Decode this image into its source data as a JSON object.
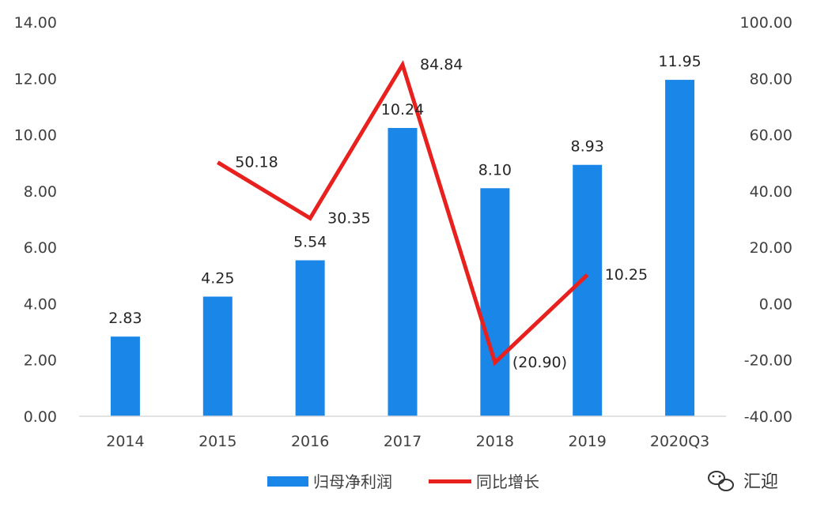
{
  "chart_data": {
    "type": "bar+line",
    "categories": [
      "2014",
      "2015",
      "2016",
      "2017",
      "2018",
      "2019",
      "2020Q3"
    ],
    "series": [
      {
        "name": "归母净利润",
        "type": "bar",
        "axis": "left",
        "color": "#1a86e8",
        "values": [
          2.83,
          4.25,
          5.54,
          10.24,
          8.1,
          8.93,
          11.95
        ],
        "labels": [
          "2.83",
          "4.25",
          "5.54",
          "10.24",
          "8.10",
          "8.93",
          "11.95"
        ]
      },
      {
        "name": "同比增长",
        "type": "line",
        "axis": "right",
        "color": "#e8201e",
        "values": [
          null,
          50.18,
          30.35,
          84.84,
          -20.9,
          10.25,
          null
        ],
        "labels": [
          "",
          "50.18",
          "30.35",
          "84.84",
          "(20.90)",
          "10.25",
          ""
        ],
        "negative_label_color": "#e8201e"
      }
    ],
    "left_axis": {
      "ylim": [
        0,
        14
      ],
      "ticks": [
        "0.00",
        "2.00",
        "4.00",
        "6.00",
        "8.00",
        "10.00",
        "12.00",
        "14.00"
      ]
    },
    "right_axis": {
      "ylim": [
        -40,
        100
      ],
      "ticks": [
        "-40.00",
        "-20.00",
        "0.00",
        "20.00",
        "40.00",
        "60.00",
        "80.00",
        "100.00"
      ]
    },
    "grid": false,
    "legend_position": "bottom"
  },
  "watermark": {
    "text": "汇迎"
  }
}
